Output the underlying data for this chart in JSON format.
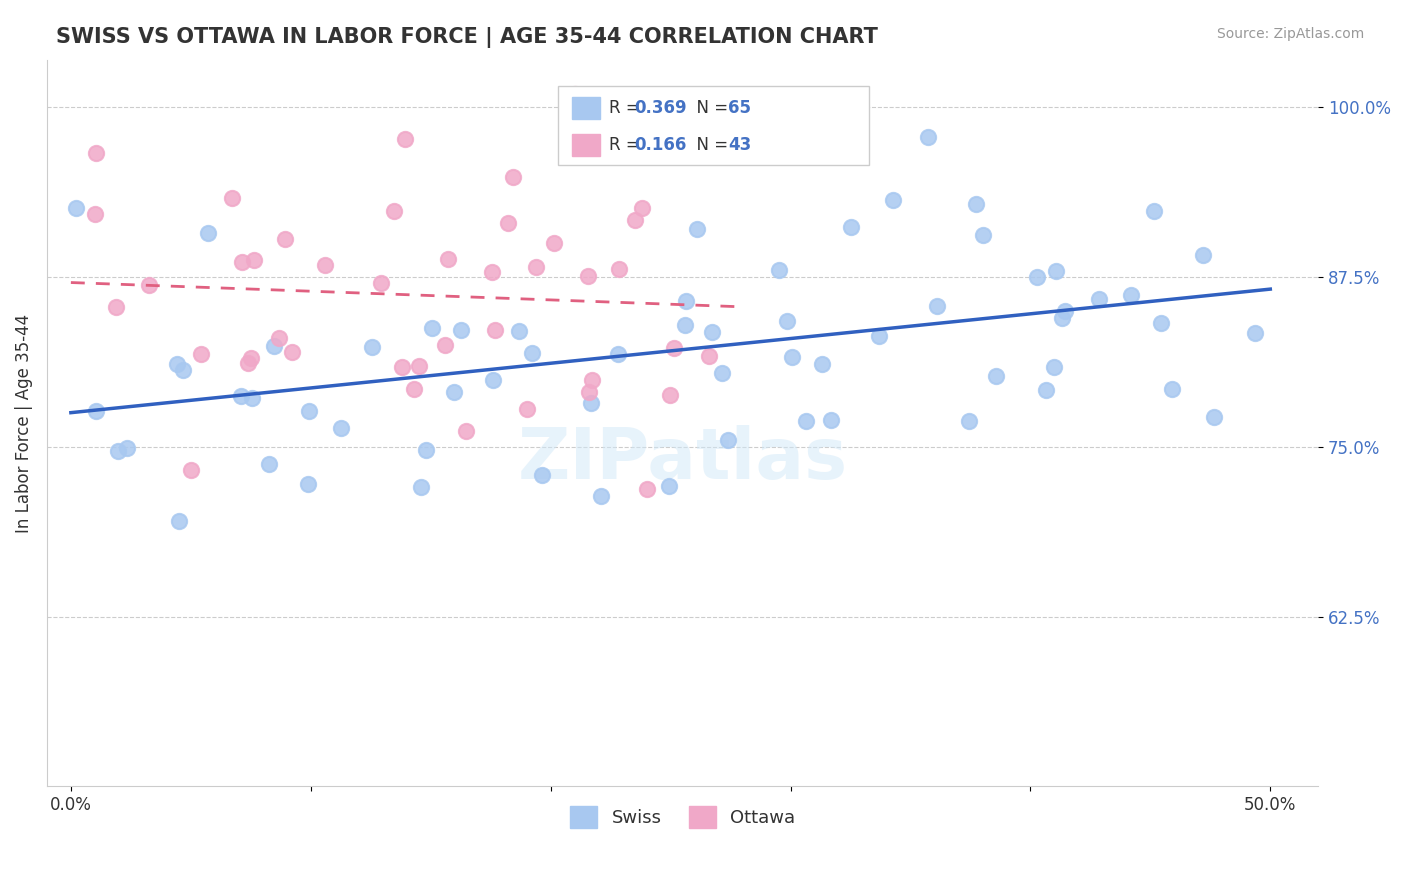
{
  "title": "SWISS VS OTTAWA IN LABOR FORCE | AGE 35-44 CORRELATION CHART",
  "source": "Source: ZipAtlas.com",
  "ylabel": "In Labor Force | Age 35-44",
  "ytick_positions": [
    0.625,
    0.75,
    0.875,
    1.0
  ],
  "ytick_labels": [
    "62.5%",
    "75.0%",
    "87.5%",
    "100.0%"
  ],
  "swiss_R": 0.369,
  "swiss_N": 65,
  "ottawa_R": 0.166,
  "ottawa_N": 43,
  "swiss_color": "#a8c8f0",
  "ottawa_color": "#f0a8c8",
  "swiss_line_color": "#3060c0",
  "ottawa_line_color": "#e06080",
  "watermark": "ZIPatlas"
}
